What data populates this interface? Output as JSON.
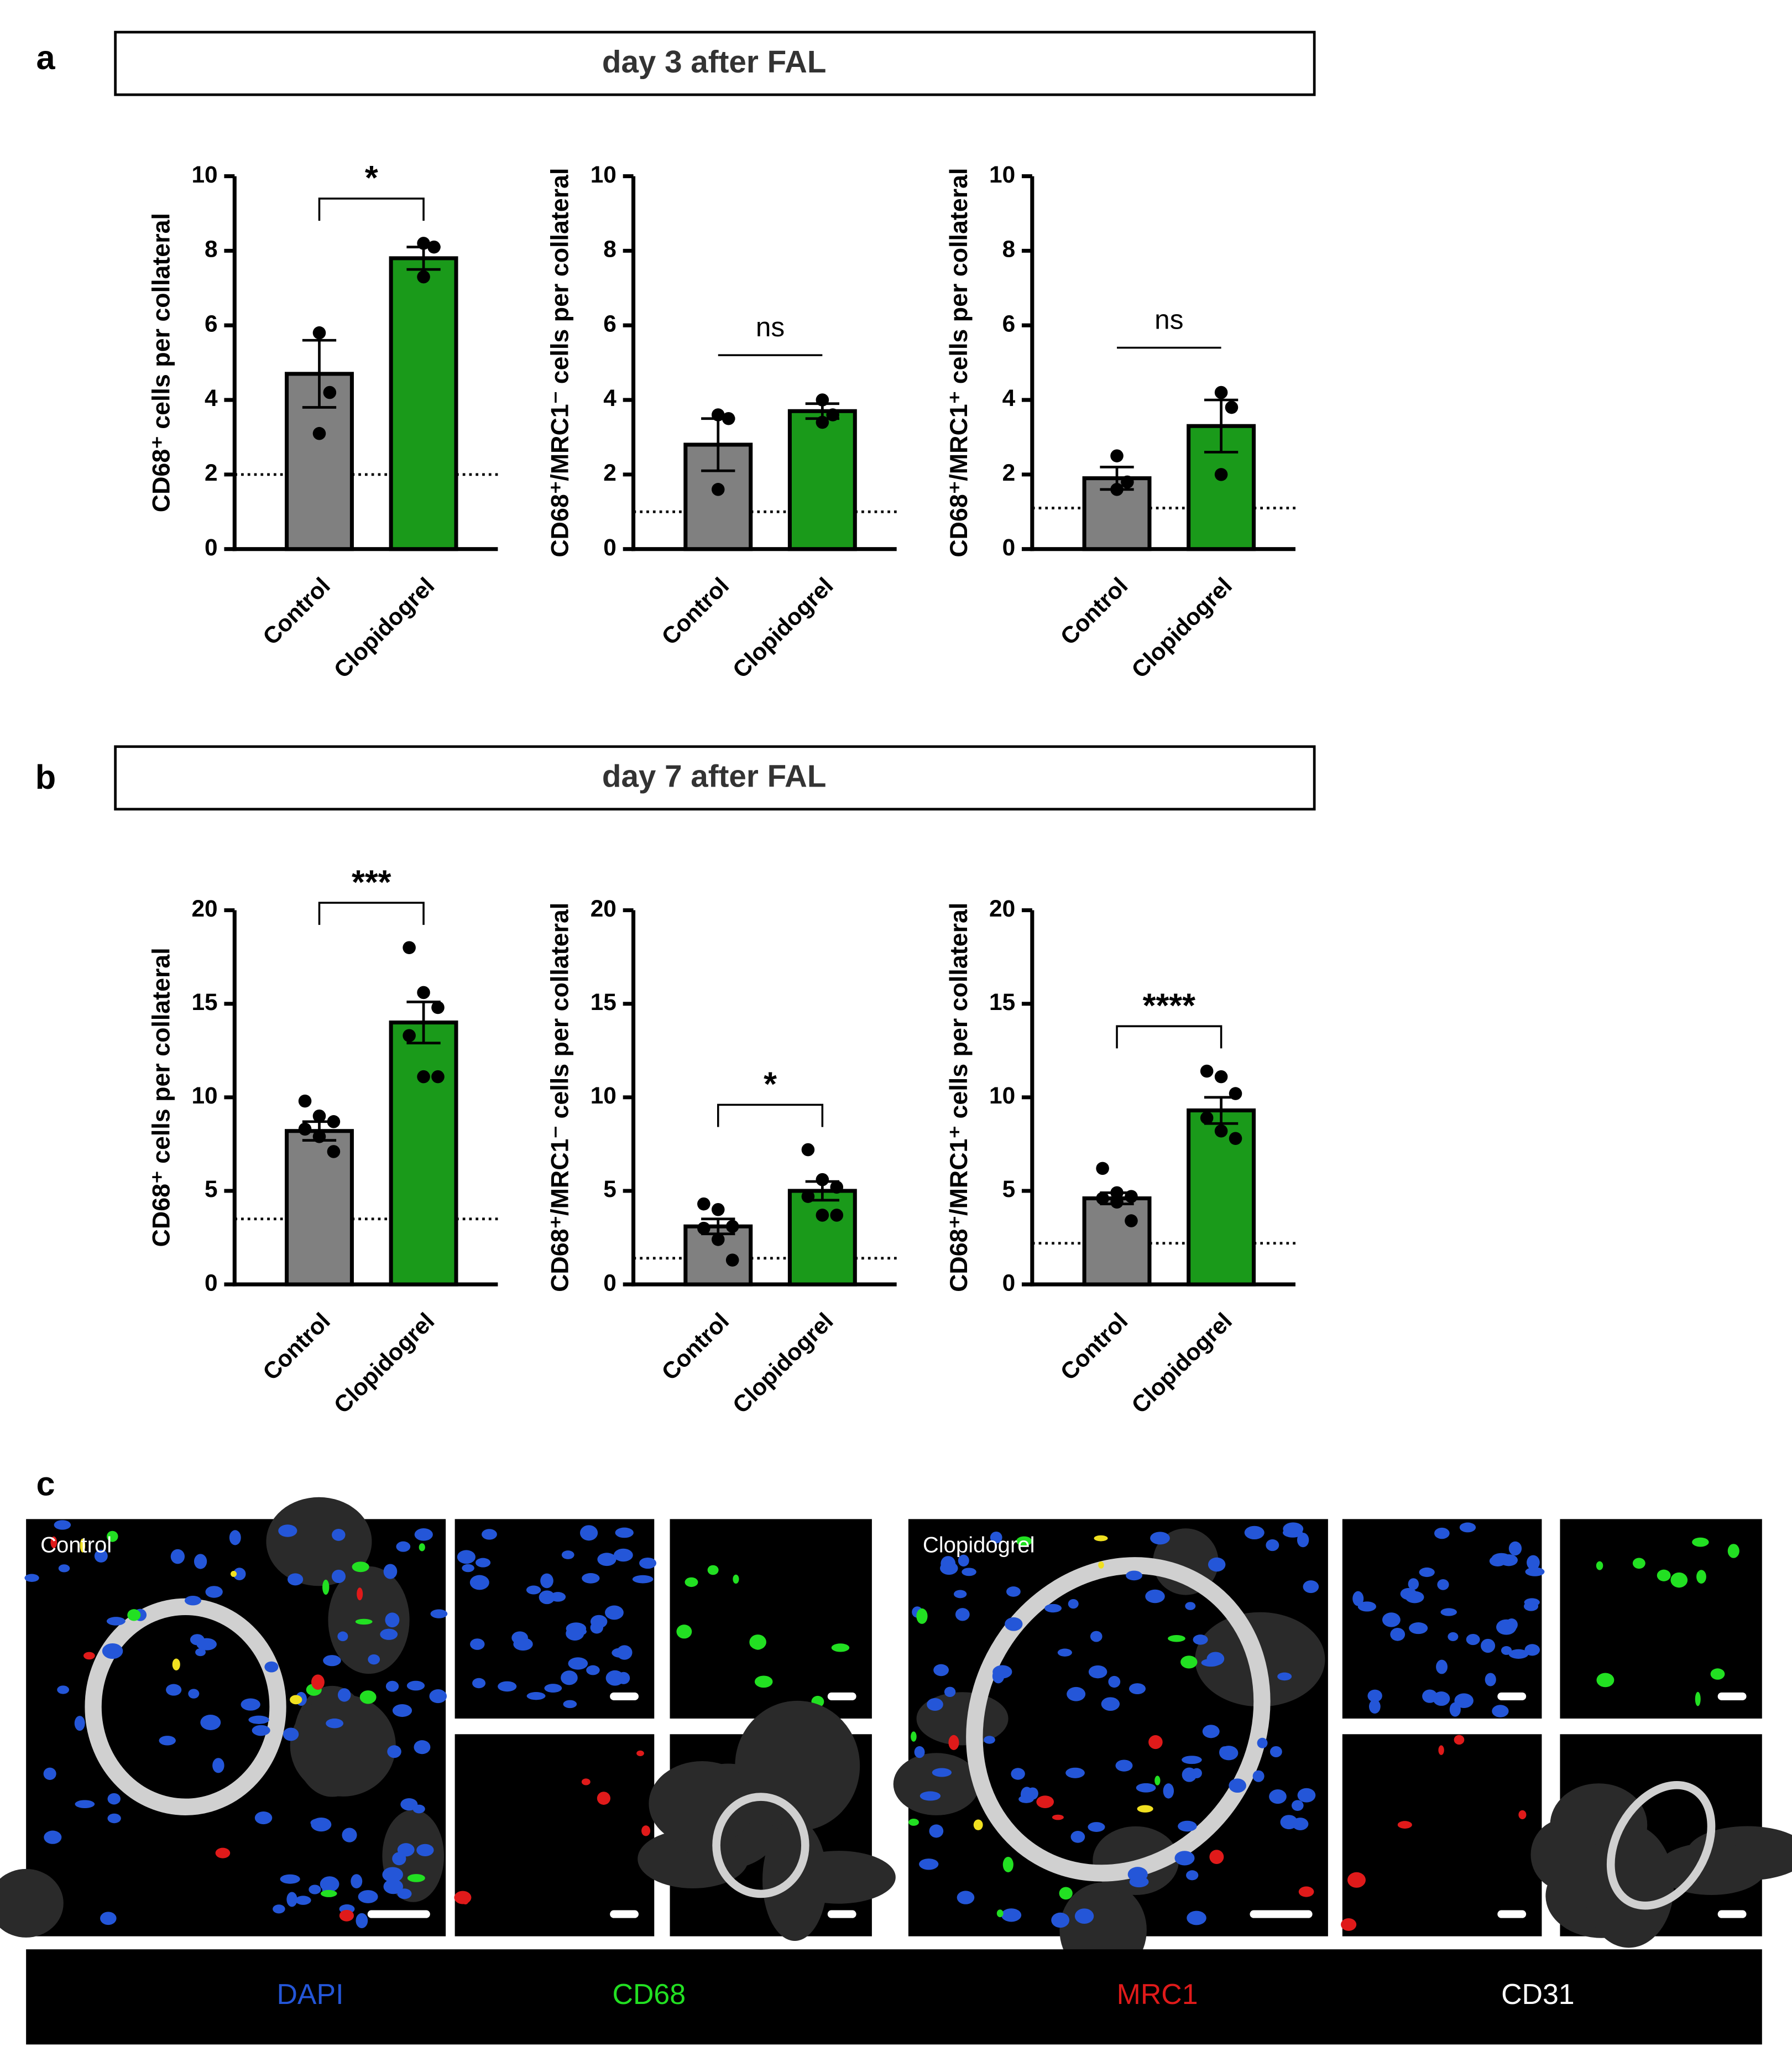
{
  "panels": [
    "a",
    "b",
    "c"
  ],
  "headers": [
    "day 3 after FAL",
    "day 7 after FAL"
  ],
  "chart_data": [
    {
      "type": "bar",
      "y_label": "CD68⁺ cells per collateral",
      "categories": [
        "Control",
        "Clopidogrel"
      ],
      "colors": [
        "#808080",
        "#1a9a1a"
      ],
      "values": [
        4.7,
        7.8
      ],
      "errors": [
        0.9,
        0.3
      ],
      "points": [
        [
          5.8,
          4.2,
          3.1
        ],
        [
          8.2,
          8.1,
          7.3
        ]
      ],
      "baseline": 2.0,
      "significance": "*",
      "ylim": [
        0,
        10
      ],
      "yticks": [
        0,
        2,
        4,
        6,
        8,
        10
      ]
    },
    {
      "type": "bar",
      "y_label": "CD68⁺/MRC1⁻ cells per collateral",
      "categories": [
        "Control",
        "Clopidogrel"
      ],
      "colors": [
        "#808080",
        "#1a9a1a"
      ],
      "values": [
        2.8,
        3.7
      ],
      "errors": [
        0.7,
        0.2
      ],
      "points": [
        [
          3.6,
          3.5,
          1.6
        ],
        [
          4.0,
          3.6,
          3.4
        ]
      ],
      "baseline": 1.0,
      "significance": "ns",
      "ylim": [
        0,
        10
      ],
      "yticks": [
        0,
        2,
        4,
        6,
        8,
        10
      ]
    },
    {
      "type": "bar",
      "y_label": "CD68⁺/MRC1⁺ cells per collateral",
      "categories": [
        "Control",
        "Clopidogrel"
      ],
      "colors": [
        "#808080",
        "#1a9a1a"
      ],
      "values": [
        1.9,
        3.3
      ],
      "errors": [
        0.3,
        0.7
      ],
      "points": [
        [
          2.5,
          1.8,
          1.6
        ],
        [
          4.2,
          3.8,
          2.0
        ]
      ],
      "baseline": 1.1,
      "significance": "ns",
      "ylim": [
        0,
        10
      ],
      "yticks": [
        0,
        2,
        4,
        6,
        8,
        10
      ]
    },
    {
      "type": "bar",
      "y_label": "CD68⁺ cells per collateral",
      "categories": [
        "Control",
        "Clopidogrel"
      ],
      "colors": [
        "#808080",
        "#1a9a1a"
      ],
      "values": [
        8.2,
        14.0
      ],
      "errors": [
        0.5,
        1.1
      ],
      "points": [
        [
          9.8,
          9.0,
          8.7,
          8.3,
          7.9,
          7.1
        ],
        [
          18.0,
          15.6,
          14.8,
          13.3,
          11.1,
          11.1
        ]
      ],
      "baseline": 3.5,
      "significance": "***",
      "ylim": [
        0,
        20
      ],
      "yticks": [
        0,
        5,
        10,
        15,
        20
      ]
    },
    {
      "type": "bar",
      "y_label": "CD68⁺/MRC1⁻ cells per collateral",
      "categories": [
        "Control",
        "Clopidogrel"
      ],
      "colors": [
        "#808080",
        "#1a9a1a"
      ],
      "values": [
        3.1,
        5.0
      ],
      "errors": [
        0.4,
        0.5
      ],
      "points": [
        [
          4.3,
          4.0,
          3.1,
          3.0,
          2.4,
          1.3
        ],
        [
          7.2,
          5.6,
          5.2,
          4.7,
          3.7,
          3.7
        ]
      ],
      "baseline": 1.4,
      "significance": "*",
      "ylim": [
        0,
        20
      ],
      "yticks": [
        0,
        5,
        10,
        15,
        20
      ]
    },
    {
      "type": "bar",
      "y_label": "CD68⁺/MRC1⁺ cells per collateral",
      "categories": [
        "Control",
        "Clopidogrel"
      ],
      "colors": [
        "#808080",
        "#1a9a1a"
      ],
      "values": [
        4.6,
        9.3
      ],
      "errors": [
        0.3,
        0.7
      ],
      "points": [
        [
          6.2,
          4.9,
          4.7,
          4.6,
          4.4,
          3.4
        ],
        [
          11.4,
          11.1,
          10.2,
          8.9,
          8.2,
          7.8
        ]
      ],
      "baseline": 2.2,
      "significance": "****",
      "ylim": [
        0,
        20
      ],
      "yticks": [
        0,
        5,
        10,
        15,
        20
      ]
    }
  ],
  "image_labels": [
    "Control",
    "Clopidogrel"
  ],
  "channels": [
    {
      "name": "DAPI",
      "color": "#2456d8"
    },
    {
      "name": "CD68",
      "color": "#22e022"
    },
    {
      "name": "MRC1",
      "color": "#e01a1a"
    },
    {
      "name": "CD31",
      "color": "#ffffff"
    }
  ]
}
